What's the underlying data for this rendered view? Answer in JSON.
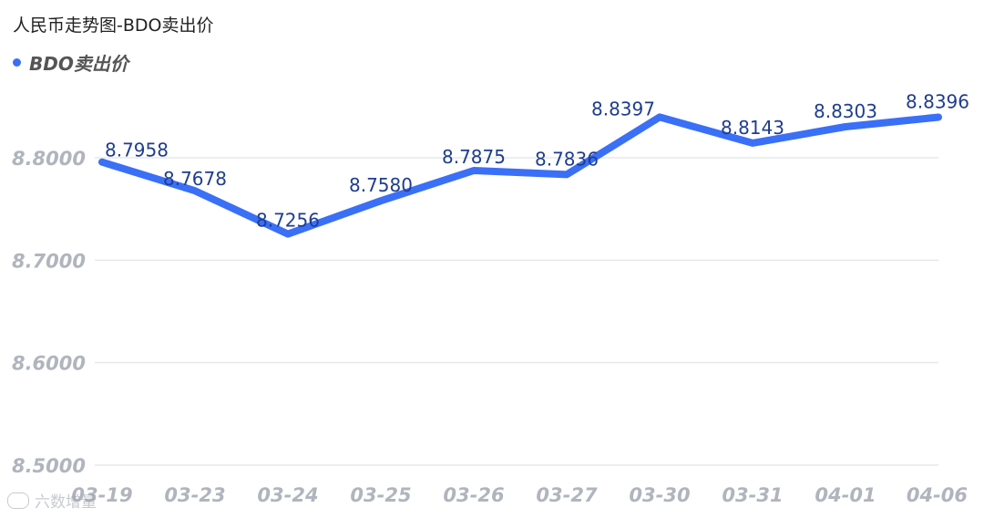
{
  "title": "人民币走势图-BDO卖出价",
  "legend": {
    "label": "BDO卖出价"
  },
  "watermark": {
    "text": "六数增量"
  },
  "colors": {
    "line": "#3a6ff7",
    "gridline": "#e6e8ec",
    "tick_text": "#b0b5bd",
    "data_label": "#1f3d8f"
  },
  "chart_data": {
    "type": "line",
    "title": "人民币走势图-BDO卖出价",
    "categories": [
      "03-19",
      "03-23",
      "03-24",
      "03-25",
      "03-26",
      "03-27",
      "03-30",
      "03-31",
      "04-01",
      "04-06"
    ],
    "series": [
      {
        "name": "BDO卖出价",
        "values": [
          8.7958,
          8.7678,
          8.7256,
          8.758,
          8.7875,
          8.7836,
          8.8397,
          8.8143,
          8.8303,
          8.8396
        ]
      }
    ],
    "data_labels": [
      "8.7958",
      "8.7678",
      "8.7256",
      "8.7580",
      "8.7875",
      "8.7836",
      "8.8397",
      "8.8143",
      "8.8303",
      "8.8396"
    ],
    "ylim": [
      8.5,
      8.8
    ],
    "yticks": [
      "8.8000",
      "8.7000",
      "8.6000",
      "8.5000"
    ],
    "grid": true,
    "legend": "top-left"
  }
}
